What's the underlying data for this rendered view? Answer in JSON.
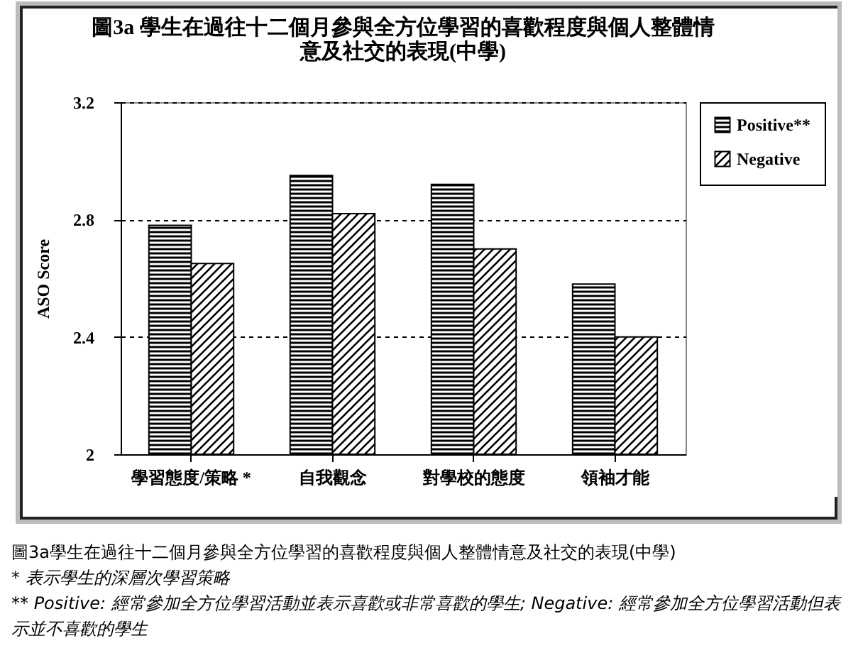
{
  "chart_data": {
    "type": "bar",
    "title": "圖3a 學生在過往十二個月參與全方位學習的喜歡程度與個人整體情意及社交的表現(中學)",
    "ylabel": "ASO Score",
    "categories": [
      "學習態度/策略 *",
      "自我觀念",
      "對學校的態度",
      "領袖才能"
    ],
    "series": [
      {
        "name": "Positive**",
        "color": "#000000",
        "values": [
          2.78,
          2.95,
          2.92,
          2.58
        ]
      },
      {
        "name": "Negative",
        "color": "#000000",
        "values": [
          2.65,
          2.82,
          2.7,
          2.4
        ]
      }
    ],
    "ylim": [
      2,
      3.2
    ],
    "yticks": [
      2,
      2.4,
      2.8,
      3.2
    ],
    "grid": "y",
    "legend": "top right",
    "annotations": [
      "圖3a學生在過往十二個月參與全方位學習的喜歡程度與個人整體情意及社交的表現(中學)",
      "* 表示學生的深層次學習策略",
      "** Positive: 經常參加全方位學習活動並表示喜歡或非常喜歡的學生; Negative: 經常參加全方位學習活動但表示並不喜歡的學生"
    ]
  }
}
